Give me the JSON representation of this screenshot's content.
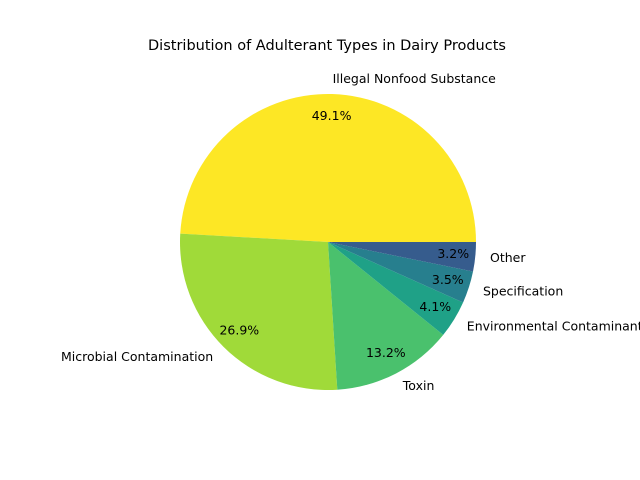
{
  "chart_data": {
    "type": "pie",
    "title": "Distribution of Adulterant Types in Dairy Products",
    "categories": [
      "Illegal Nonfood Substance",
      "Microbial Contamination",
      "Toxin",
      "Environmental Contaminant",
      "Specification",
      "Other"
    ],
    "values": [
      49.1,
      26.9,
      13.2,
      4.1,
      3.5,
      3.2
    ],
    "value_labels": [
      "49.1%",
      "26.9%",
      "13.2%",
      "4.1%",
      "3.5%",
      "3.2%"
    ],
    "colors": [
      "#fde725",
      "#a0da39",
      "#4ac16d",
      "#1fa187",
      "#277f8e",
      "#365c8d"
    ],
    "start_angle_deg": 0,
    "direction": "counterclockwise",
    "legend": "none"
  }
}
